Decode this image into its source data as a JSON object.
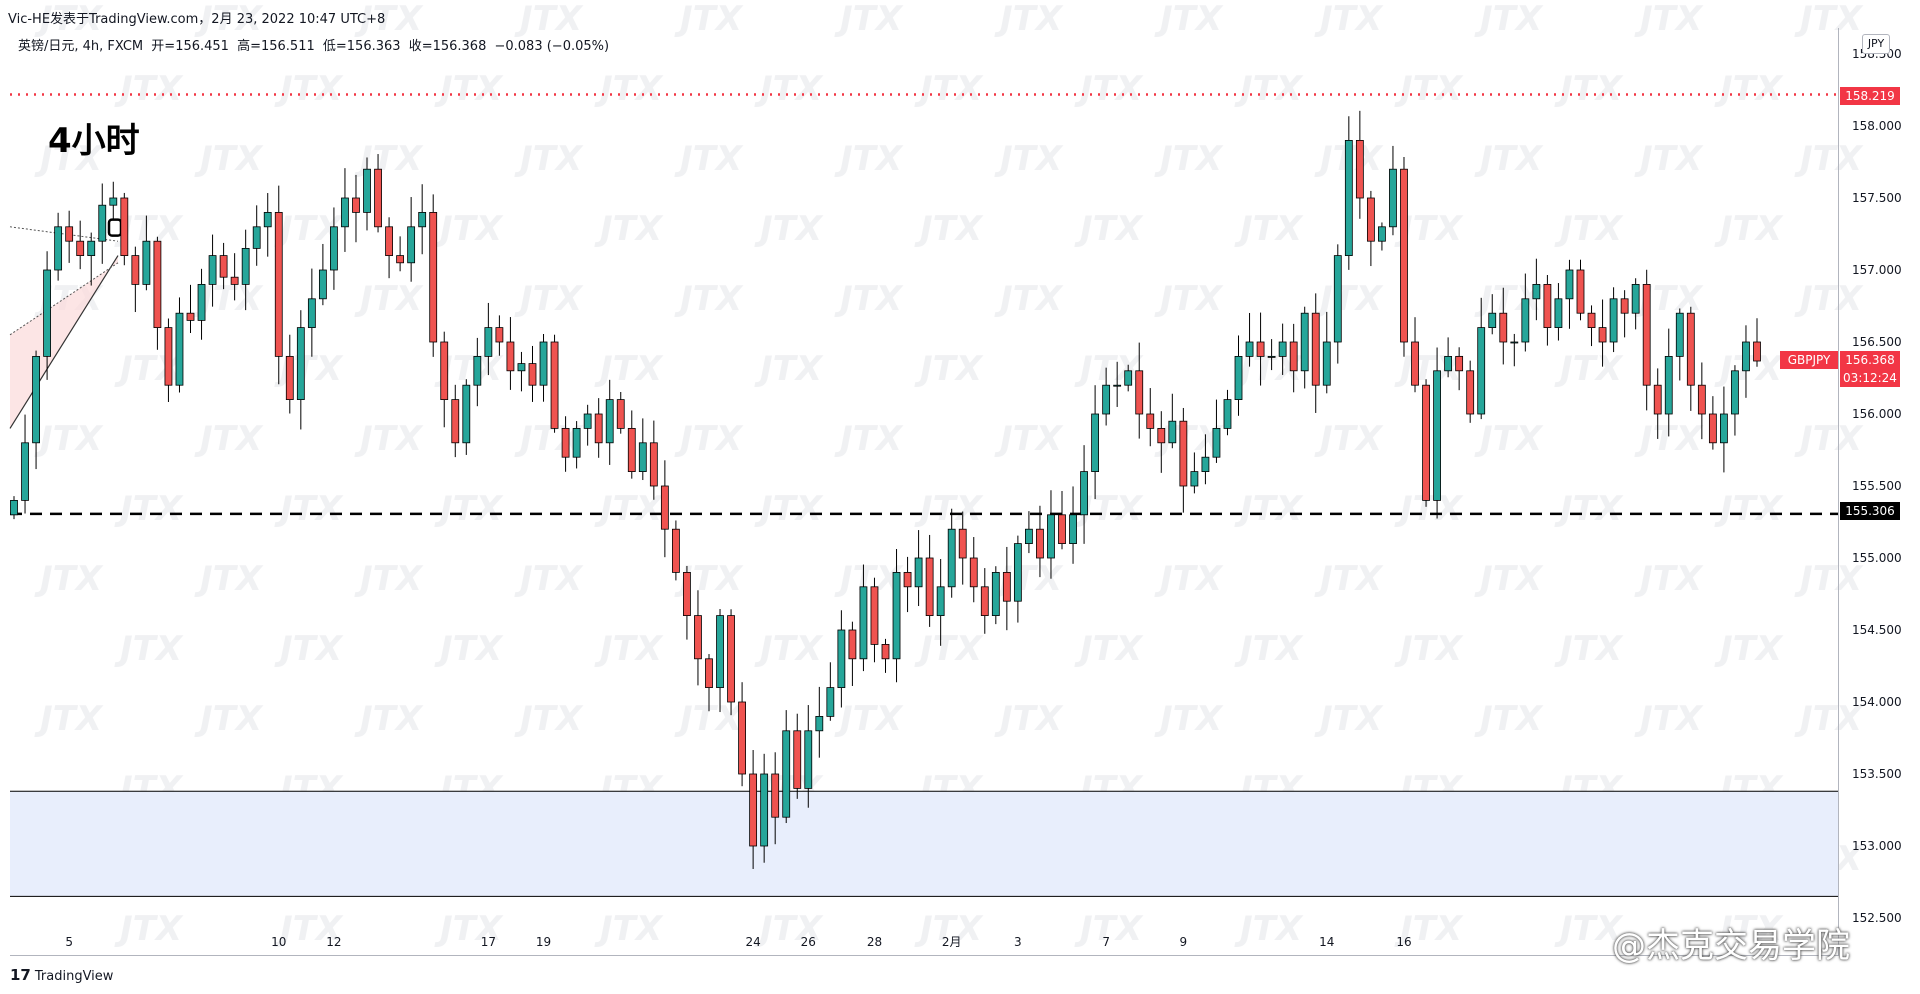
{
  "header": {
    "publisher": "Vic-HE发表于TradingView.com，2月 23, 2022 10:47 UTC+8"
  },
  "symbol_info": {
    "name": "英镑/日元, 4h, FXCM",
    "open": "开=156.451",
    "high": "高=156.511",
    "low": "低=156.363",
    "close": "收=156.368",
    "change": "−0.083 (−0.05%)"
  },
  "annotation": "4小时",
  "axis": {
    "currency": "JPY",
    "red_line_label": "158.219",
    "black_line_label": "155.306",
    "symbol_tag": "GBPJPY",
    "last_price": "156.368",
    "countdown": "03:12:24"
  },
  "footer": {
    "brand_mark": "17",
    "brand_name": "TradingView",
    "corner_watermark": "@杰克交易学院"
  },
  "watermark_text": "JTX",
  "colors": {
    "up": "#26a69a",
    "down": "#ef5350",
    "resistance_dotted": "#f23645",
    "support_dashed": "#000000",
    "zone_fill": "#e8eefc"
  },
  "chart_data": {
    "type": "candlestick",
    "title": "",
    "timeframe": "4h",
    "x_ticks": [
      "5",
      "10",
      "12",
      "17",
      "19",
      "24",
      "26",
      "28",
      "2月",
      "3",
      "7",
      "9",
      "14",
      "16"
    ],
    "y_ticks": [
      "158.500",
      "158.000",
      "157.500",
      "157.000",
      "156.500",
      "156.000",
      "155.500",
      "155.000",
      "154.500",
      "154.000",
      "153.500",
      "153.000",
      "152.500"
    ],
    "ylim": [
      152.5,
      158.7
    ],
    "horizontal_lines": [
      {
        "price": 158.219,
        "style": "dotted",
        "color": "#f23645"
      },
      {
        "price": 155.306,
        "style": "dashed",
        "color": "#000000"
      }
    ],
    "zone": {
      "from": 152.65,
      "to": 153.38,
      "color": "#e8eefc"
    },
    "path_closes": [
      155.4,
      155.8,
      156.4,
      157.0,
      157.3,
      157.2,
      157.1,
      157.2,
      157.45,
      157.5,
      157.1,
      156.9,
      157.2,
      156.6,
      156.2,
      156.7,
      156.65,
      156.9,
      157.1,
      156.95,
      156.9,
      157.15,
      157.3,
      157.4,
      156.4,
      156.1,
      156.6,
      156.8,
      157.0,
      157.3,
      157.5,
      157.4,
      157.7,
      157.3,
      157.1,
      157.05,
      157.3,
      157.4,
      156.5,
      156.1,
      155.8,
      156.2,
      156.4,
      156.6,
      156.5,
      156.3,
      156.35,
      156.2,
      156.5,
      155.9,
      155.7,
      155.9,
      156.0,
      155.8,
      156.1,
      155.9,
      155.6,
      155.8,
      155.5,
      155.2,
      154.9,
      154.6,
      154.3,
      154.1,
      154.6,
      154.0,
      153.5,
      153.0,
      153.5,
      153.2,
      153.8,
      153.4,
      153.8,
      153.9,
      154.1,
      154.5,
      154.3,
      154.8,
      154.4,
      154.3,
      154.9,
      154.8,
      155.0,
      154.6,
      154.8,
      155.2,
      155.0,
      154.8,
      154.6,
      154.9,
      154.7,
      155.1,
      155.2,
      155.0,
      155.3,
      155.1,
      155.3,
      155.6,
      156.0,
      156.2,
      156.2,
      156.3,
      156.0,
      155.9,
      155.8,
      155.95,
      155.5,
      155.6,
      155.7,
      155.9,
      156.1,
      156.4,
      156.5,
      156.4,
      156.4,
      156.5,
      156.3,
      156.7,
      156.2,
      156.5,
      157.1,
      157.9,
      157.5,
      157.2,
      157.3,
      157.7,
      156.5,
      156.2,
      155.4,
      156.3,
      156.4,
      156.3,
      156.0,
      156.6,
      156.7,
      156.5,
      156.5,
      156.8,
      156.9,
      156.6,
      156.8,
      157.0,
      156.7,
      156.6,
      156.5,
      156.8,
      156.7,
      156.9,
      156.2,
      156.0,
      156.4,
      156.7,
      156.2,
      156.0,
      155.8,
      156.0,
      156.3,
      156.5,
      156.368
    ]
  }
}
